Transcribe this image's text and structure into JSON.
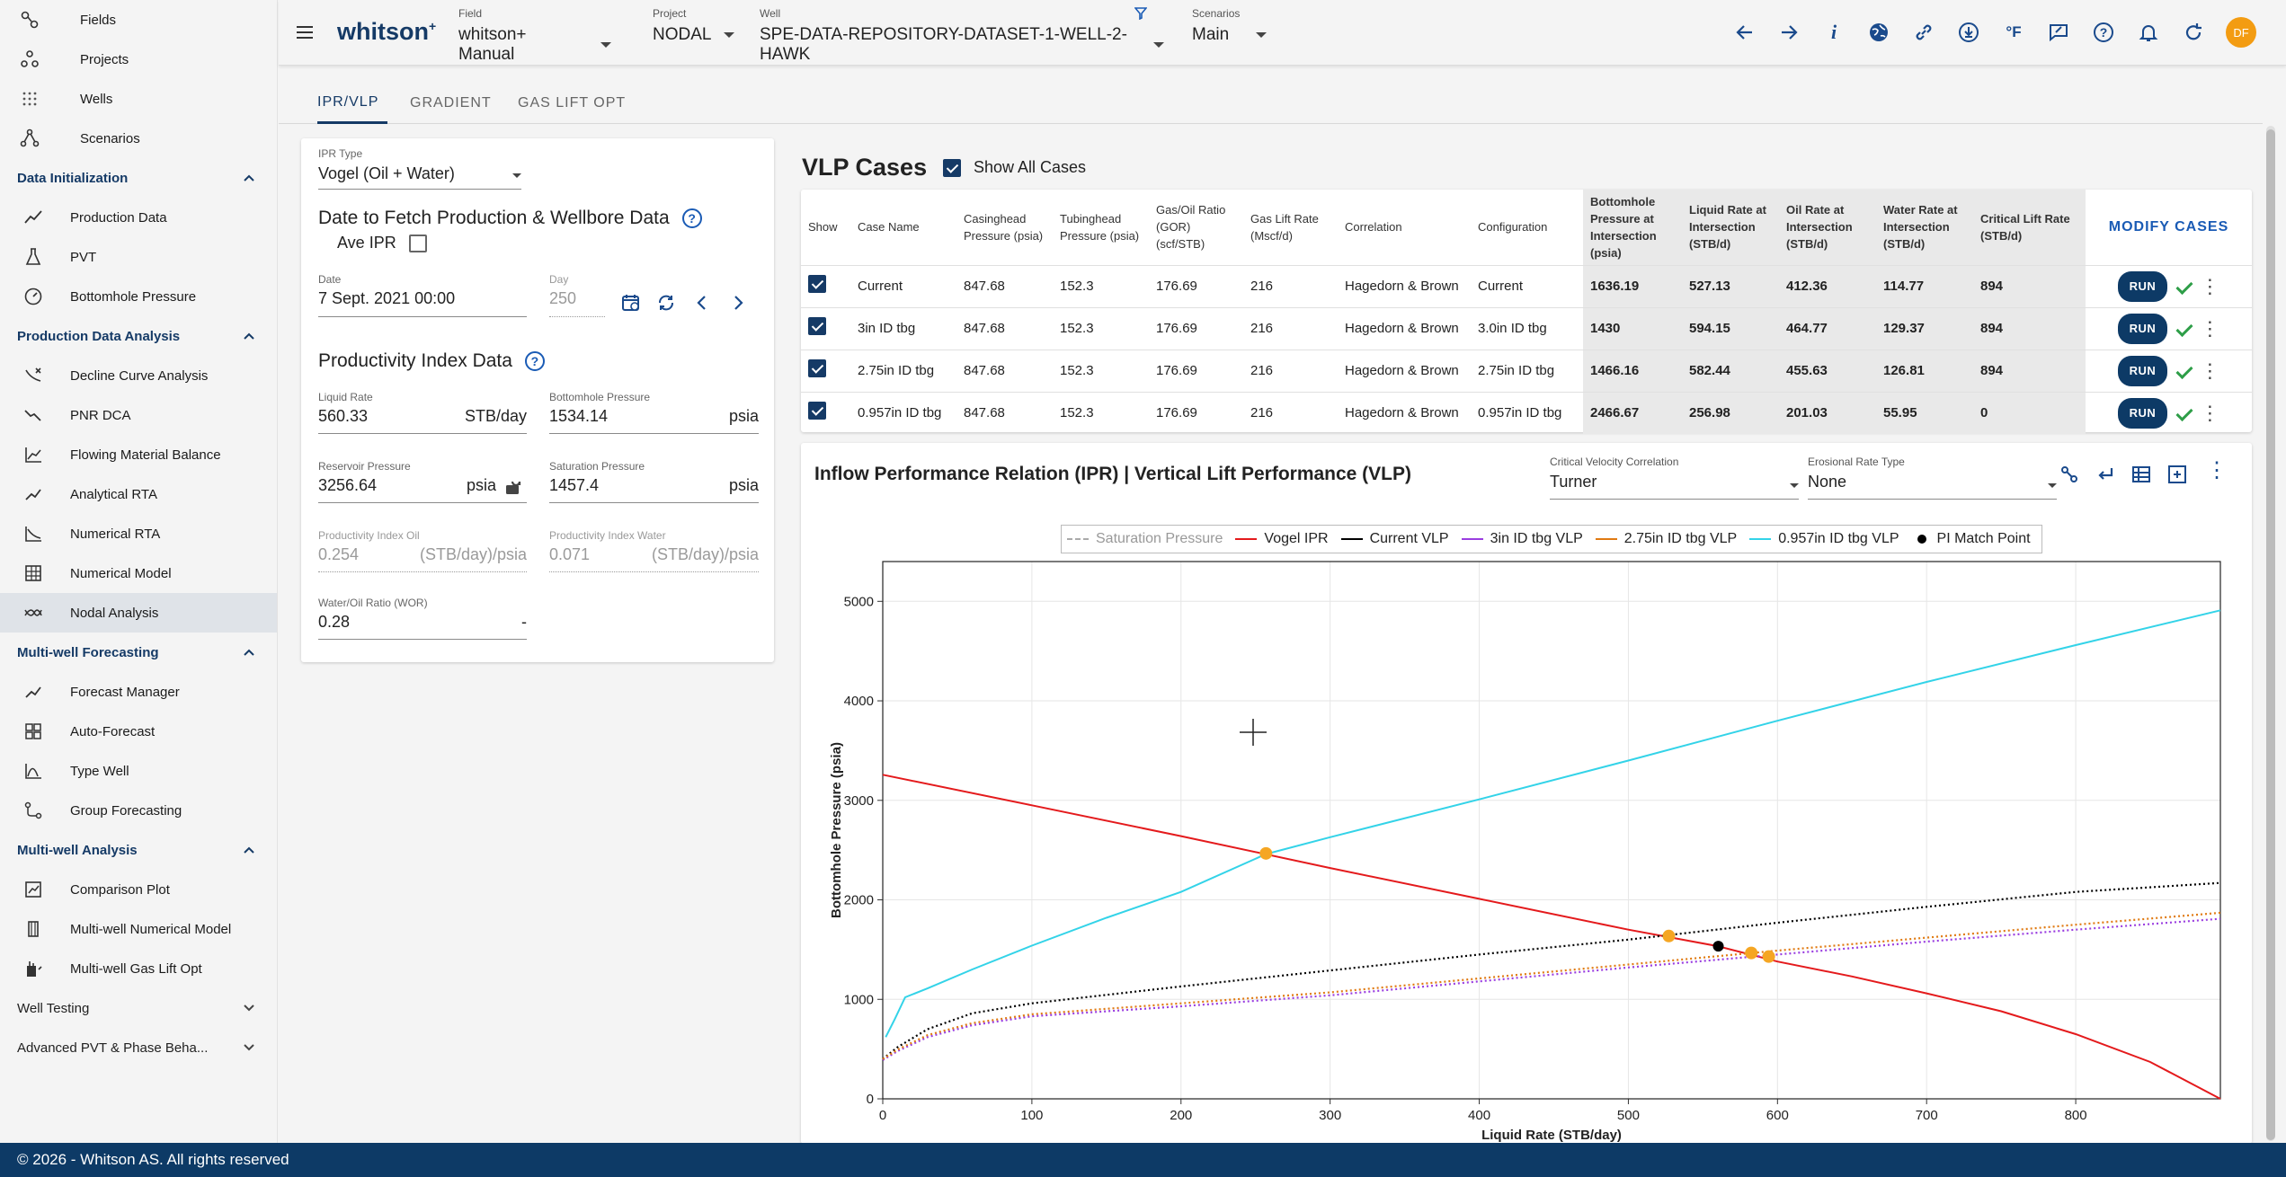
{
  "sidebar": {
    "top_items": [
      {
        "label": "Fields",
        "icon": "fields-icon"
      },
      {
        "label": "Projects",
        "icon": "projects-icon"
      },
      {
        "label": "Wells",
        "icon": "wells-icon"
      },
      {
        "label": "Scenarios",
        "icon": "scenarios-icon"
      }
    ],
    "sections": [
      {
        "title": "Data Initialization",
        "expanded": true,
        "items": [
          {
            "label": "Production Data",
            "icon": "production-data-icon"
          },
          {
            "label": "PVT",
            "icon": "pvt-icon"
          },
          {
            "label": "Bottomhole Pressure",
            "icon": "bottomhole-pressure-icon"
          }
        ]
      },
      {
        "title": "Production Data Analysis",
        "expanded": true,
        "items": [
          {
            "label": "Decline Curve Analysis",
            "icon": "decline-curve-icon"
          },
          {
            "label": "PNR DCA",
            "icon": "pnr-dca-icon"
          },
          {
            "label": "Flowing Material Balance",
            "icon": "flowing-material-balance-icon"
          },
          {
            "label": "Analytical RTA",
            "icon": "analytical-rta-icon"
          },
          {
            "label": "Numerical RTA",
            "icon": "numerical-rta-icon"
          },
          {
            "label": "Numerical Model",
            "icon": "numerical-model-icon"
          },
          {
            "label": "Nodal Analysis",
            "icon": "nodal-analysis-icon",
            "active": true
          }
        ]
      },
      {
        "title": "Multi-well Forecasting",
        "expanded": true,
        "items": [
          {
            "label": "Forecast Manager",
            "icon": "forecast-manager-icon"
          },
          {
            "label": "Auto-Forecast",
            "icon": "auto-forecast-icon"
          },
          {
            "label": "Type Well",
            "icon": "type-well-icon"
          },
          {
            "label": "Group Forecasting",
            "icon": "group-forecasting-icon"
          }
        ]
      },
      {
        "title": "Multi-well Analysis",
        "expanded": true,
        "items": [
          {
            "label": "Comparison Plot",
            "icon": "comparison-plot-icon"
          },
          {
            "label": "Multi-well Numerical Model",
            "icon": "multiwell-numerical-model-icon"
          },
          {
            "label": "Multi-well Gas Lift Opt",
            "icon": "multiwell-gas-lift-icon"
          }
        ]
      },
      {
        "title": "Well Testing",
        "expanded": false,
        "items": []
      },
      {
        "title": "Advanced PVT & Phase Beha...",
        "expanded": false,
        "items": []
      }
    ]
  },
  "footer": {
    "text": "© 2026 - Whitson AS. All rights reserved"
  },
  "header": {
    "logo": "whitson",
    "logo_sup": "+",
    "field": {
      "label": "Field",
      "value": "whitson+ Manual"
    },
    "project": {
      "label": "Project",
      "value": "NODAL"
    },
    "well": {
      "label": "Well",
      "value": "SPE-DATA-REPOSITORY-DATASET-1-WELL-2-HAWK"
    },
    "scenarios": {
      "label": "Scenarios",
      "value": "Main"
    },
    "avatar": "DF",
    "avatar_color": "#f39c12"
  },
  "tabs": [
    "IPR/VLP",
    "GRADIENT",
    "GAS LIFT OPT"
  ],
  "left_panel": {
    "ipr_type": {
      "label": "IPR Type",
      "value": "Vogel (Oil + Water)"
    },
    "wellbore_title": "Date to Fetch Production & Wellbore Data",
    "ave_ipr_label": "Ave IPR",
    "date": {
      "label": "Date",
      "value": "7 Sept. 2021 00:00"
    },
    "day": {
      "label": "Day",
      "value": "250"
    },
    "pi_title": "Productivity Index Data",
    "liquid_rate": {
      "label": "Liquid Rate",
      "value": "560.33",
      "unit": "STB/day"
    },
    "bottomhole_pressure": {
      "label": "Bottomhole Pressure",
      "value": "1534.14",
      "unit": "psia"
    },
    "reservoir_pressure": {
      "label": "Reservoir Pressure",
      "value": "3256.64",
      "unit": "psia"
    },
    "saturation_pressure": {
      "label": "Saturation Pressure",
      "value": "1457.4",
      "unit": "psia"
    },
    "pi_oil": {
      "label": "Productivity Index Oil",
      "value": "0.254",
      "unit": "(STB/day)/psia"
    },
    "pi_water": {
      "label": "Productivity Index Water",
      "value": "0.071",
      "unit": "(STB/day)/psia"
    },
    "wor": {
      "label": "Water/Oil Ratio (WOR)",
      "value": "0.28",
      "unit": "-"
    }
  },
  "vlp": {
    "title": "VLP Cases",
    "show_all_label": "Show All Cases",
    "modify_label": "MODIFY CASES",
    "run_label": "RUN",
    "columns": [
      "Show",
      "Case Name",
      "Casinghead Pressure (psia)",
      "Tubinghead Pressure (psia)",
      "Gas/Oil Ratio (GOR) (scf/STB)",
      "Gas Lift Rate (Mscf/d)",
      "Correlation",
      "Configuration",
      "Bottomhole Pressure at Intersection (psia)",
      "Liquid Rate at Intersection (STB/d)",
      "Oil Rate at Intersection (STB/d)",
      "Water Rate at Intersection (STB/d)",
      "Critical Lift Rate (STB/d)"
    ],
    "rows": [
      [
        "Current",
        "847.68",
        "152.3",
        "176.69",
        "216",
        "Hagedorn & Brown",
        "Current",
        "1636.19",
        "527.13",
        "412.36",
        "114.77",
        "894"
      ],
      [
        "3in ID tbg",
        "847.68",
        "152.3",
        "176.69",
        "216",
        "Hagedorn & Brown",
        "3.0in ID tbg",
        "1430",
        "594.15",
        "464.77",
        "129.37",
        "894"
      ],
      [
        "2.75in ID tbg",
        "847.68",
        "152.3",
        "176.69",
        "216",
        "Hagedorn & Brown",
        "2.75in ID tbg",
        "1466.16",
        "582.44",
        "455.63",
        "126.81",
        "894"
      ],
      [
        "0.957in ID tbg",
        "847.68",
        "152.3",
        "176.69",
        "216",
        "Hagedorn & Brown",
        "0.957in ID tbg",
        "2466.67",
        "256.98",
        "201.03",
        "55.95",
        "0"
      ]
    ]
  },
  "plot_panel": {
    "title": "Inflow Performance Relation (IPR) | Vertical Lift Performance (VLP)",
    "critical_velocity": {
      "label": "Critical Velocity Correlation",
      "value": "Turner"
    },
    "erosional_rate": {
      "label": "Erosional Rate Type",
      "value": "None"
    }
  },
  "chart_data": {
    "type": "line",
    "xlabel": "Liquid Rate (STB/day)",
    "ylabel": "Bottomhole Pressure (psia)",
    "xlim": [
      0,
      897
    ],
    "ylim": [
      0,
      5400
    ],
    "xticks": [
      0,
      100,
      200,
      300,
      400,
      500,
      600,
      700,
      800
    ],
    "yticks": [
      0,
      1000,
      2000,
      3000,
      4000,
      5000
    ],
    "grid": true,
    "legend_position": "top",
    "series": [
      {
        "name": "Saturation Pressure",
        "color": "#aaaaaa",
        "style": "dashed",
        "points": []
      },
      {
        "name": "Vogel IPR",
        "color": "#e41a1c",
        "style": "solid",
        "points": [
          [
            0,
            3257
          ],
          [
            100,
            2950
          ],
          [
            200,
            2640
          ],
          [
            300,
            2320
          ],
          [
            400,
            2010
          ],
          [
            500,
            1700
          ],
          [
            560,
            1534
          ],
          [
            600,
            1380
          ],
          [
            650,
            1230
          ],
          [
            700,
            1060
          ],
          [
            750,
            880
          ],
          [
            800,
            650
          ],
          [
            850,
            370
          ],
          [
            897,
            0
          ]
        ]
      },
      {
        "name": "Current VLP",
        "color": "#000000",
        "style": "dotted",
        "points": [
          [
            0,
            400
          ],
          [
            10,
            520
          ],
          [
            30,
            700
          ],
          [
            60,
            860
          ],
          [
            100,
            960
          ],
          [
            200,
            1130
          ],
          [
            300,
            1290
          ],
          [
            400,
            1450
          ],
          [
            500,
            1600
          ],
          [
            600,
            1770
          ],
          [
            700,
            1930
          ],
          [
            800,
            2080
          ],
          [
            897,
            2170
          ]
        ]
      },
      {
        "name": "3in ID tbg VLP",
        "color": "#9a3de0",
        "style": "dotted",
        "points": [
          [
            0,
            390
          ],
          [
            10,
            480
          ],
          [
            30,
            620
          ],
          [
            60,
            740
          ],
          [
            100,
            830
          ],
          [
            200,
            930
          ],
          [
            300,
            1040
          ],
          [
            400,
            1180
          ],
          [
            500,
            1320
          ],
          [
            600,
            1450
          ],
          [
            700,
            1580
          ],
          [
            800,
            1700
          ],
          [
            897,
            1810
          ]
        ]
      },
      {
        "name": "2.75in ID tbg VLP",
        "color": "#e07a12",
        "style": "dotted",
        "points": [
          [
            0,
            400
          ],
          [
            10,
            495
          ],
          [
            30,
            640
          ],
          [
            60,
            760
          ],
          [
            100,
            850
          ],
          [
            200,
            960
          ],
          [
            300,
            1070
          ],
          [
            400,
            1210
          ],
          [
            500,
            1350
          ],
          [
            600,
            1490
          ],
          [
            700,
            1620
          ],
          [
            800,
            1750
          ],
          [
            897,
            1870
          ]
        ]
      },
      {
        "name": "0.957in ID tbg VLP",
        "color": "#33d3e8",
        "style": "solid",
        "points": [
          [
            2,
            620
          ],
          [
            8,
            800
          ],
          [
            15,
            1020
          ],
          [
            30,
            1110
          ],
          [
            60,
            1300
          ],
          [
            100,
            1540
          ],
          [
            150,
            1820
          ],
          [
            200,
            2080
          ],
          [
            257,
            2460
          ],
          [
            300,
            2630
          ],
          [
            400,
            3010
          ],
          [
            500,
            3400
          ],
          [
            600,
            3800
          ],
          [
            700,
            4190
          ],
          [
            800,
            4560
          ],
          [
            897,
            4910
          ]
        ]
      },
      {
        "name": "PI Match Point",
        "color": "#000000",
        "style": "marker",
        "points": [
          [
            560.33,
            1534.14
          ]
        ]
      }
    ],
    "intersections": [
      [
        527.13,
        1636.19
      ],
      [
        594.15,
        1430
      ],
      [
        582.44,
        1466.16
      ],
      [
        256.98,
        2466.67
      ]
    ],
    "intersection_color": "#f5a623"
  }
}
